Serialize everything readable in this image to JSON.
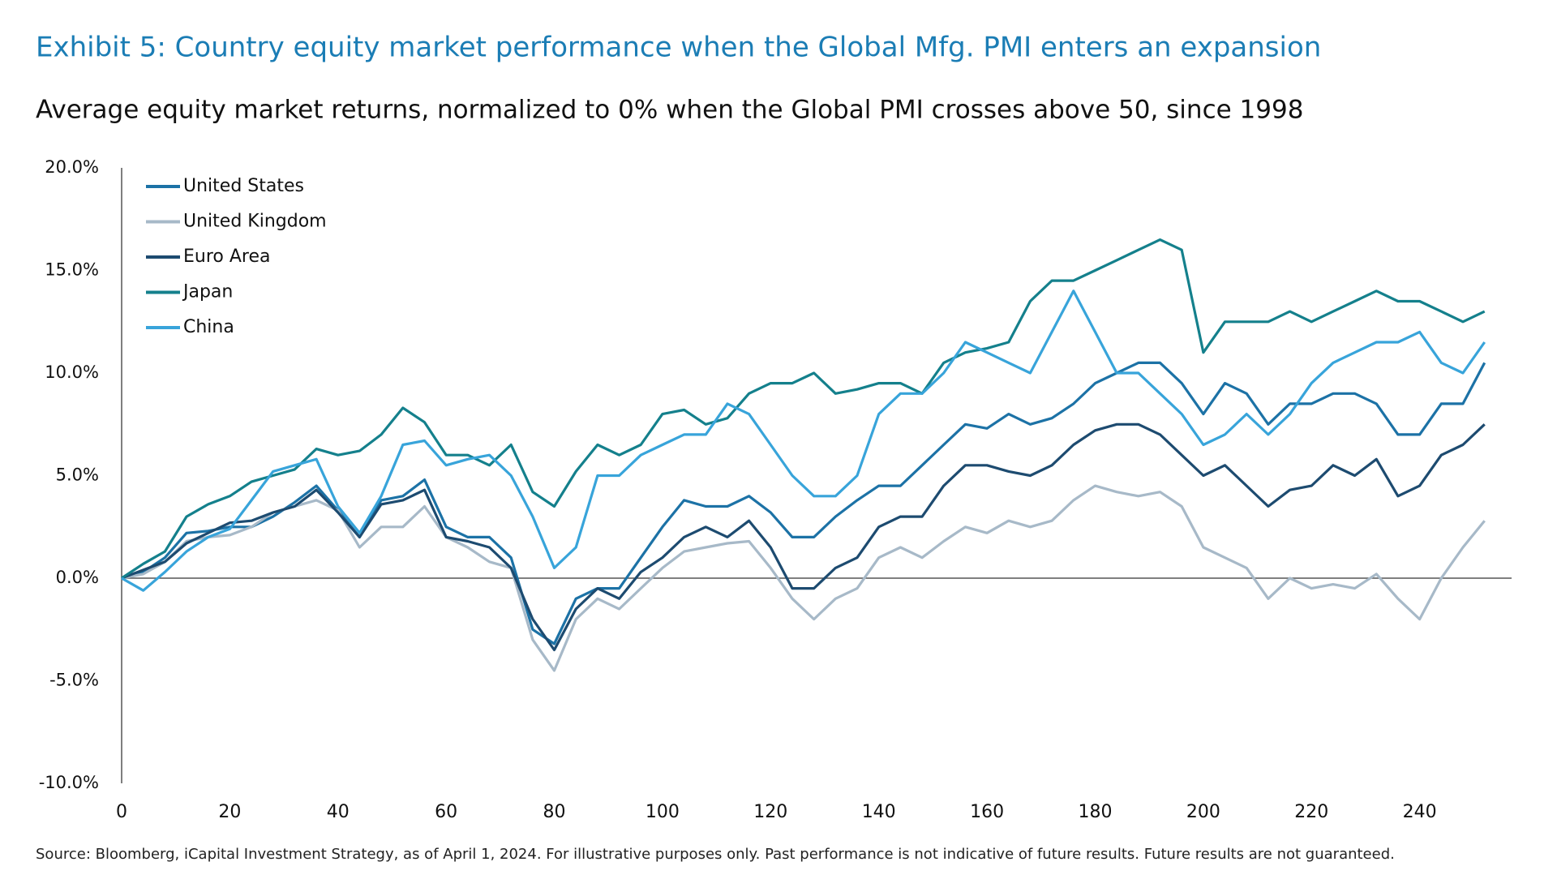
{
  "chart_data": {
    "type": "line",
    "title": "Exhibit 5: Country equity market performance when the Global Mfg. PMI enters an expansion",
    "subtitle": "Average equity market returns, normalized to 0% when the Global PMI crosses above 50, since 1998",
    "source": "Source: Bloomberg, iCapital Investment Strategy, as of April 1, 2024. For illustrative purposes only. Past performance is not indicative of future results. Future results are not guaranteed.",
    "x": [
      0,
      4,
      8,
      12,
      16,
      20,
      24,
      28,
      32,
      36,
      40,
      44,
      48,
      52,
      56,
      60,
      64,
      68,
      72,
      76,
      80,
      84,
      88,
      92,
      96,
      100,
      104,
      108,
      112,
      116,
      120,
      124,
      128,
      132,
      136,
      140,
      144,
      148,
      152,
      156,
      160,
      164,
      168,
      172,
      176,
      180,
      184,
      188,
      192,
      196,
      200,
      204,
      208,
      212,
      216,
      220,
      224,
      228,
      232,
      236,
      240,
      244,
      248,
      252
    ],
    "series": [
      {
        "name": "United States",
        "color": "#1c72a6",
        "values": [
          0,
          0.3,
          1.0,
          2.2,
          2.3,
          2.5,
          2.5,
          3.0,
          3.7,
          4.5,
          3.3,
          2.0,
          3.8,
          4.0,
          4.8,
          2.5,
          2.0,
          2.0,
          1.0,
          -2.5,
          -3.2,
          -1.0,
          -0.5,
          -0.5,
          1.0,
          2.5,
          3.8,
          3.5,
          3.5,
          4.0,
          3.2,
          2.0,
          2.0,
          3.0,
          3.8,
          4.5,
          4.5,
          5.5,
          6.5,
          7.5,
          7.3,
          8.0,
          7.5,
          7.8,
          8.5,
          9.5,
          10.0,
          10.5,
          10.5,
          9.5,
          8.0,
          9.5,
          9.0,
          7.5,
          8.5,
          8.5,
          9.0,
          9.0,
          8.5,
          7.0,
          7.0,
          8.5,
          8.5,
          10.5
        ]
      },
      {
        "name": "United Kingdom",
        "color": "#a7b9c8",
        "values": [
          0,
          0.2,
          0.8,
          1.8,
          2.0,
          2.1,
          2.5,
          3.2,
          3.5,
          3.8,
          3.3,
          1.5,
          2.5,
          2.5,
          3.5,
          2.0,
          1.5,
          0.8,
          0.5,
          -3.0,
          -4.5,
          -2.0,
          -1.0,
          -1.5,
          -0.5,
          0.5,
          1.3,
          1.5,
          1.7,
          1.8,
          0.5,
          -1.0,
          -2.0,
          -1.0,
          -0.5,
          1.0,
          1.5,
          1.0,
          1.8,
          2.5,
          2.2,
          2.8,
          2.5,
          2.8,
          3.8,
          4.5,
          4.2,
          4.0,
          4.2,
          3.5,
          1.5,
          1.0,
          0.5,
          -1.0,
          0.0,
          -0.5,
          -0.3,
          -0.5,
          0.2,
          -1.0,
          -2.0,
          0.0,
          1.5,
          2.8
        ]
      },
      {
        "name": "Euro Area",
        "color": "#1d4b70",
        "values": [
          0,
          0.4,
          0.8,
          1.7,
          2.2,
          2.7,
          2.8,
          3.2,
          3.5,
          4.3,
          3.2,
          2.0,
          3.6,
          3.8,
          4.3,
          2.0,
          1.8,
          1.5,
          0.5,
          -2.0,
          -3.5,
          -1.5,
          -0.5,
          -1.0,
          0.3,
          1.0,
          2.0,
          2.5,
          2.0,
          2.8,
          1.5,
          -0.5,
          -0.5,
          0.5,
          1.0,
          2.5,
          3.0,
          3.0,
          4.5,
          5.5,
          5.5,
          5.2,
          5.0,
          5.5,
          6.5,
          7.2,
          7.5,
          7.5,
          7.0,
          6.0,
          5.0,
          5.5,
          4.5,
          3.5,
          4.3,
          4.5,
          5.5,
          5.0,
          5.8,
          4.0,
          4.5,
          6.0,
          6.5,
          7.5
        ]
      },
      {
        "name": "Japan",
        "color": "#14808c",
        "values": [
          0,
          0.7,
          1.3,
          3.0,
          3.6,
          4.0,
          4.7,
          5.0,
          5.3,
          6.3,
          6.0,
          6.2,
          7.0,
          8.3,
          7.6,
          6.0,
          6.0,
          5.5,
          6.5,
          4.2,
          3.5,
          5.2,
          6.5,
          6.0,
          6.5,
          8.0,
          8.2,
          7.5,
          7.8,
          9.0,
          9.5,
          9.5,
          10.0,
          9.0,
          9.2,
          9.5,
          9.5,
          9.0,
          10.5,
          11.0,
          11.2,
          11.5,
          13.5,
          14.5,
          14.5,
          15.0,
          15.5,
          16.0,
          16.5,
          16.0,
          11.0,
          12.5,
          12.5,
          12.5,
          13.0,
          12.5,
          13.0,
          13.5,
          14.0,
          13.5,
          13.5,
          13.0,
          12.5,
          13.0
        ]
      },
      {
        "name": "China",
        "color": "#38a4da",
        "values": [
          0,
          -0.6,
          0.3,
          1.3,
          2.0,
          2.4,
          3.8,
          5.2,
          5.5,
          5.8,
          3.5,
          2.2,
          4.0,
          6.5,
          6.7,
          5.5,
          5.8,
          6.0,
          5.0,
          3.0,
          0.5,
          1.5,
          5.0,
          5.0,
          6.0,
          6.5,
          7.0,
          7.0,
          8.5,
          8.0,
          6.5,
          5.0,
          4.0,
          4.0,
          5.0,
          8.0,
          9.0,
          9.0,
          10.0,
          11.5,
          11.0,
          10.5,
          10.0,
          12.0,
          14.0,
          12.0,
          10.0,
          10.0,
          9.0,
          8.0,
          6.5,
          7.0,
          8.0,
          7.0,
          8.0,
          9.5,
          10.5,
          11.0,
          11.5,
          11.5,
          12.0,
          10.5,
          10.0,
          11.5
        ]
      }
    ],
    "xlim": [
      0,
      257
    ],
    "xticks": [
      0,
      20,
      40,
      60,
      80,
      100,
      120,
      140,
      160,
      180,
      200,
      220,
      240
    ],
    "ylim": [
      -10,
      20
    ],
    "yticks": [
      {
        "value": -10,
        "label": "-10.0%"
      },
      {
        "value": -5,
        "label": "-5.0%"
      },
      {
        "value": 0,
        "label": "0.0%"
      },
      {
        "value": 5,
        "label": "5.0%"
      },
      {
        "value": 10,
        "label": "10.0%"
      },
      {
        "value": 15,
        "label": "15.0%"
      },
      {
        "value": 20,
        "label": "20.0%"
      }
    ],
    "grid": false,
    "legend": "upper-left"
  }
}
